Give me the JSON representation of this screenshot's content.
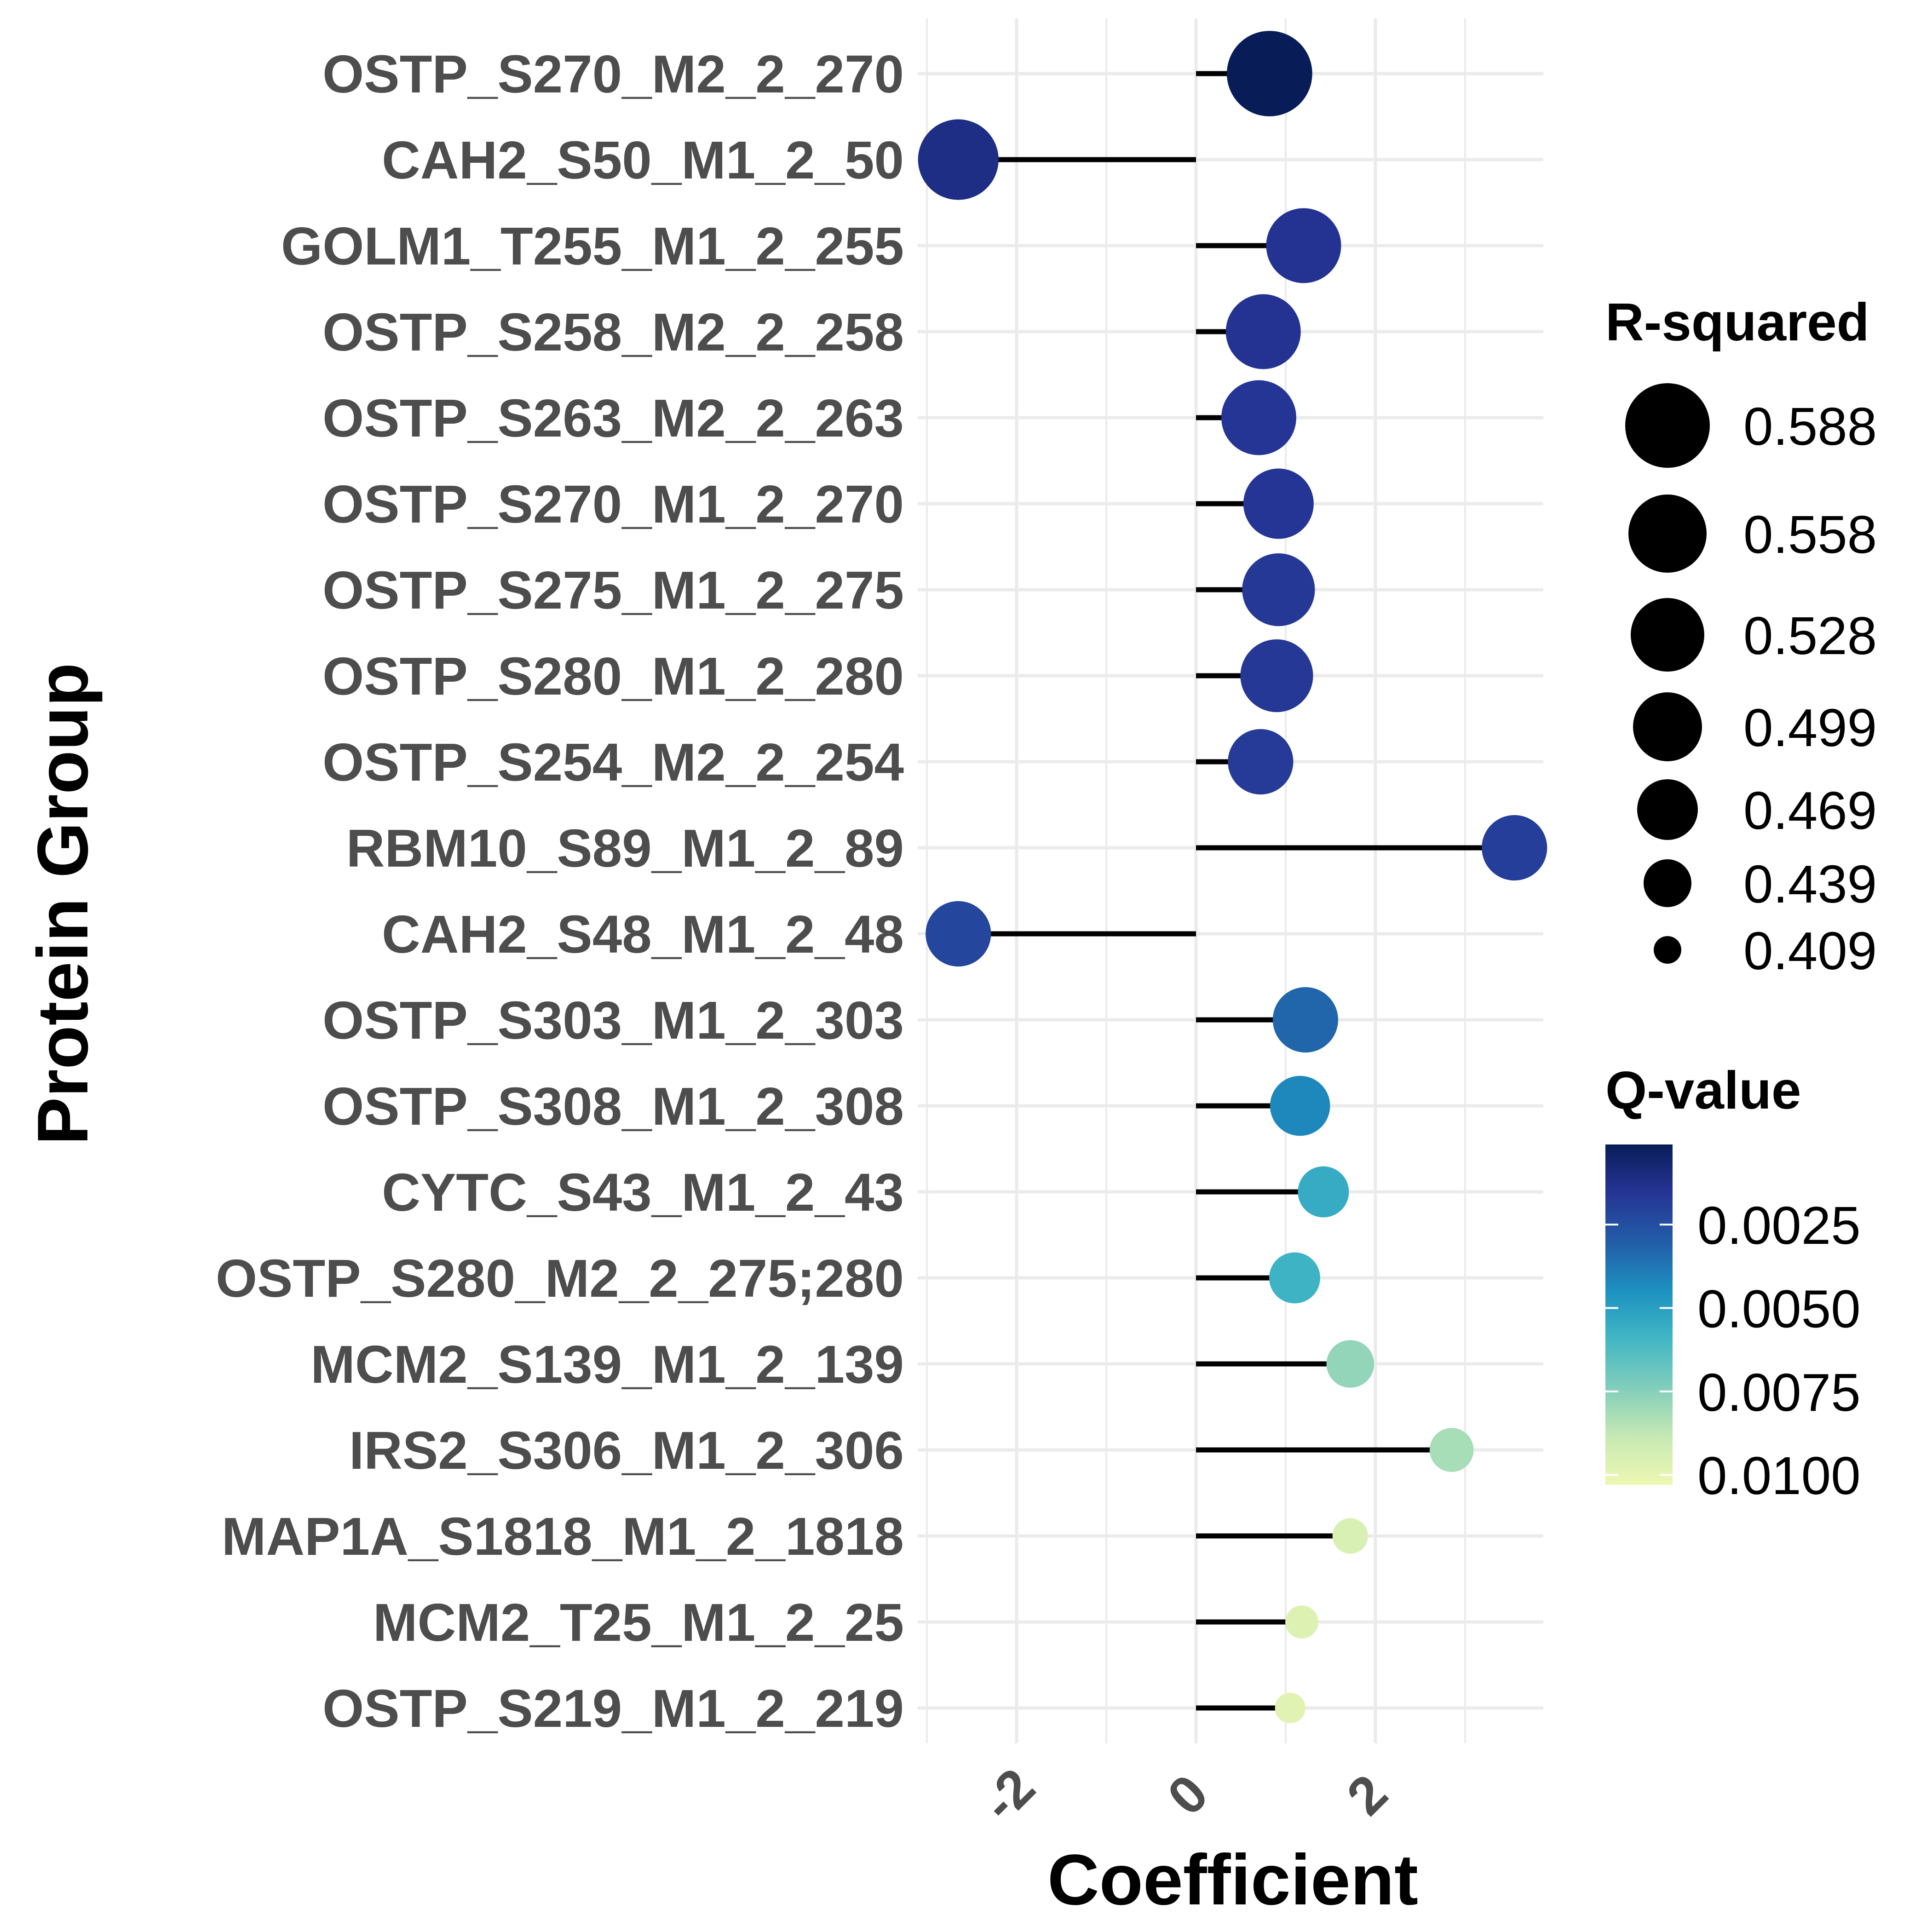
{
  "chart_data": {
    "type": "lollipop",
    "title": "",
    "xlabel": "Coefficient",
    "ylabel": "Protein Group",
    "x_ticks": [
      "-2",
      "0",
      "2"
    ],
    "x_tick_values": [
      -2,
      0,
      2
    ],
    "xlim": [
      -3.0,
      3.9
    ],
    "grid": true,
    "categories": [
      "OSTP_S270_M2_2_270",
      "CAH2_S50_M1_2_50",
      "GOLM1_T255_M1_2_255",
      "OSTP_S258_M2_2_258",
      "OSTP_S263_M2_2_263",
      "OSTP_S270_M1_2_270",
      "OSTP_S275_M1_2_275",
      "OSTP_S280_M1_2_280",
      "OSTP_S254_M2_2_254",
      "RBM10_S89_M1_2_89",
      "CAH2_S48_M1_2_48",
      "OSTP_S303_M1_2_303",
      "OSTP_S308_M1_2_308",
      "CYTC_S43_M1_2_43",
      "OSTP_S280_M2_2_275;280",
      "MCM2_S139_M1_2_139",
      "IRS2_S306_M1_2_306",
      "MAP1A_S1818_M1_2_1818",
      "MCM2_T25_M1_2_25",
      "OSTP_S219_M1_2_219"
    ],
    "coefficient": [
      0.82,
      -2.65,
      1.2,
      0.75,
      0.7,
      0.92,
      0.92,
      0.9,
      0.72,
      3.55,
      -2.65,
      1.22,
      1.16,
      1.42,
      1.1,
      1.72,
      2.85,
      1.72,
      1.18,
      1.05
    ],
    "r_squared": [
      0.59,
      0.566,
      0.54,
      0.54,
      0.54,
      0.52,
      0.53,
      0.53,
      0.5,
      0.5,
      0.5,
      0.5,
      0.48,
      0.45,
      0.45,
      0.44,
      0.43,
      0.41,
      0.405,
      0.4
    ],
    "q_value": [
      0.0001,
      0.0012,
      0.0015,
      0.0015,
      0.0016,
      0.0016,
      0.0017,
      0.0017,
      0.0018,
      0.0019,
      0.0022,
      0.0032,
      0.0042,
      0.0055,
      0.0058,
      0.0078,
      0.0082,
      0.0095,
      0.0097,
      0.0098
    ],
    "legend": {
      "size": {
        "title": "R-squared",
        "labels": [
          "0.588",
          "0.558",
          "0.528",
          "0.499",
          "0.469",
          "0.439",
          "0.409"
        ],
        "values": [
          0.588,
          0.558,
          0.528,
          0.499,
          0.469,
          0.439,
          0.409
        ]
      },
      "color": {
        "title": "Q-value",
        "labels": [
          "0.0025",
          "0.0050",
          "0.0075",
          "0.0100"
        ],
        "values": [
          0.0025,
          0.005,
          0.0075,
          0.01
        ],
        "range": [
          0.0001,
          0.0103
        ],
        "colors": [
          "#081d58",
          "#253494",
          "#225ea8",
          "#1d91c0",
          "#41b6c4",
          "#7fcdbb",
          "#c7e9b4",
          "#edf8b1"
        ]
      },
      "placement": "right"
    }
  }
}
